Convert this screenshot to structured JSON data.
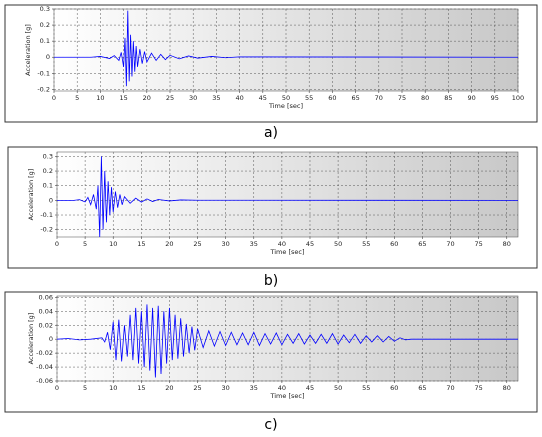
{
  "chart_data": [
    {
      "type": "line",
      "caption": "a)",
      "xlabel": "Time [sec]",
      "ylabel": "Acceleration [g]",
      "xlim": [
        0,
        100
      ],
      "ylim": [
        -0.21,
        0.3
      ],
      "grid": true,
      "xticks": [
        0,
        5,
        10,
        15,
        20,
        25,
        30,
        35,
        40,
        45,
        50,
        55,
        60,
        65,
        70,
        75,
        80,
        85,
        90,
        95,
        100
      ],
      "yticks": [
        -0.2,
        -0.1,
        0,
        0.1,
        0.2,
        0.3
      ],
      "x": [
        0,
        8,
        10,
        12,
        13,
        14,
        14.5,
        15,
        15.3,
        15.6,
        15.9,
        16.2,
        16.5,
        16.8,
        17.1,
        17.4,
        17.7,
        18,
        18.5,
        19,
        19.5,
        20,
        21,
        22,
        23,
        24,
        25,
        27,
        29,
        31,
        34,
        37,
        40,
        100
      ],
      "series": [
        {
          "color": "#0000ff",
          "values": [
            0,
            0,
            0.005,
            -0.008,
            0.01,
            -0.02,
            0.03,
            -0.06,
            0.12,
            -0.18,
            0.29,
            -0.15,
            0.14,
            -0.12,
            0.1,
            -0.09,
            0.07,
            -0.06,
            0.05,
            -0.04,
            0.035,
            -0.03,
            0.025,
            -0.02,
            0.018,
            -0.015,
            0.012,
            -0.01,
            0.008,
            -0.006,
            0.005,
            -0.003,
            0.002,
            0
          ]
        }
      ]
    },
    {
      "type": "line",
      "caption": "b)",
      "xlabel": "Time [sec]",
      "ylabel": "Acceleration [g]",
      "xlim": [
        0,
        82
      ],
      "ylim": [
        -0.25,
        0.33
      ],
      "grid": true,
      "xticks": [
        0,
        5,
        10,
        15,
        20,
        25,
        30,
        35,
        40,
        45,
        50,
        55,
        60,
        65,
        70,
        75,
        80
      ],
      "yticks": [
        -0.2,
        -0.1,
        0,
        0.1,
        0.2,
        0.3
      ],
      "x": [
        0,
        3,
        4,
        5,
        5.5,
        6,
        6.5,
        7,
        7.3,
        7.6,
        7.9,
        8.2,
        8.5,
        8.8,
        9.1,
        9.4,
        9.7,
        10,
        10.4,
        10.8,
        11.2,
        11.6,
        12,
        13,
        14,
        15,
        16,
        17,
        18,
        20,
        22,
        25,
        82
      ],
      "series": [
        {
          "color": "#0000ff",
          "values": [
            0,
            0,
            0.005,
            -0.01,
            0.02,
            -0.03,
            0.04,
            -0.06,
            0.1,
            -0.25,
            0.3,
            -0.2,
            0.2,
            -0.15,
            0.13,
            -0.1,
            0.09,
            -0.08,
            0.06,
            -0.05,
            0.04,
            -0.03,
            0.025,
            -0.02,
            0.015,
            -0.012,
            0.01,
            -0.008,
            0.006,
            -0.004,
            0.003,
            0.001,
            0
          ]
        }
      ]
    },
    {
      "type": "line",
      "caption": "c)",
      "xlabel": "Time [sec]",
      "ylabel": "Acceleration [g]",
      "xlim": [
        0,
        82
      ],
      "ylim": [
        -0.06,
        0.062
      ],
      "grid": true,
      "xticks": [
        0,
        5,
        10,
        15,
        20,
        25,
        30,
        35,
        40,
        45,
        50,
        55,
        60,
        65,
        70,
        75,
        80
      ],
      "yticks": [
        -0.06,
        -0.04,
        -0.02,
        0,
        0.02,
        0.04,
        0.06
      ],
      "x": [
        0,
        2,
        4,
        6,
        8,
        8.5,
        9,
        9.5,
        10,
        10.5,
        11,
        11.5,
        12,
        12.5,
        13,
        13.5,
        14,
        14.5,
        15,
        15.5,
        16,
        16.5,
        17,
        17.5,
        18,
        18.5,
        19,
        19.5,
        20,
        20.5,
        21,
        21.5,
        22,
        22.5,
        23,
        23.5,
        24,
        24.5,
        25,
        26,
        27,
        28,
        29,
        30,
        31,
        32,
        33,
        34,
        35,
        36,
        37,
        38,
        39,
        40,
        41,
        42,
        43,
        44,
        45,
        46,
        47,
        48,
        49,
        50,
        51,
        52,
        53,
        54,
        55,
        56,
        57,
        58,
        59,
        60,
        61,
        62,
        63,
        82
      ],
      "series": [
        {
          "color": "#0000ff",
          "values": [
            0,
            0.001,
            -0.001,
            0,
            0.002,
            -0.004,
            0.01,
            -0.015,
            0.025,
            -0.03,
            0.028,
            -0.032,
            0.02,
            -0.025,
            0.035,
            -0.03,
            0.045,
            -0.035,
            0.04,
            -0.04,
            0.05,
            -0.045,
            0.045,
            -0.055,
            0.048,
            -0.05,
            0.04,
            -0.035,
            0.045,
            -0.03,
            0.035,
            -0.028,
            0.03,
            -0.025,
            0.022,
            -0.02,
            0.018,
            -0.016,
            0.015,
            -0.012,
            0.012,
            -0.01,
            0.011,
            -0.009,
            0.01,
            -0.008,
            0.009,
            -0.008,
            0.01,
            -0.009,
            0.008,
            -0.007,
            0.009,
            -0.008,
            0.007,
            -0.006,
            0.008,
            -0.007,
            0.006,
            -0.006,
            0.007,
            -0.006,
            0.008,
            -0.007,
            0.006,
            -0.005,
            0.007,
            -0.006,
            0.005,
            -0.004,
            0.005,
            -0.004,
            0.004,
            -0.003,
            0.002,
            -0.001,
            0,
            0
          ]
        }
      ]
    }
  ]
}
